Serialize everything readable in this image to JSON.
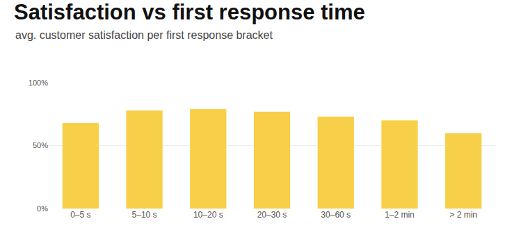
{
  "chart_data": {
    "type": "bar",
    "title": "Satisfaction vs first response time",
    "subtitle": "avg. customer satisfaction per first response bracket",
    "categories": [
      "0–5 s",
      "5–10 s",
      "10–20 s",
      "20–30 s",
      "30–60 s",
      "1–2 min",
      "> 2 min"
    ],
    "values": [
      68,
      78,
      79,
      77,
      73,
      70,
      60
    ],
    "color": "#f8cf48",
    "ylim": [
      0,
      100
    ],
    "yticks": [
      {
        "value": 0,
        "label": "0%"
      },
      {
        "value": 50,
        "label": "50%"
      },
      {
        "value": 100,
        "label": "100%"
      }
    ],
    "grid": true
  }
}
